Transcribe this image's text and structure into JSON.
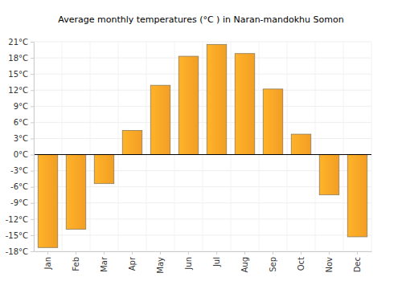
{
  "chart_data": {
    "type": "bar",
    "title": "Average monthly temperatures (°C ) in Naran-mandokhu Somon",
    "categories": [
      "Jan",
      "Feb",
      "Mar",
      "Apr",
      "May",
      "Jun",
      "Jul",
      "Aug",
      "Sep",
      "Oct",
      "Nov",
      "Dec"
    ],
    "values": [
      -17.3,
      -13.9,
      -5.4,
      4.5,
      12.9,
      18.3,
      20.5,
      18.8,
      12.2,
      3.8,
      -7.5,
      -15.3
    ],
    "color": "#ffa726",
    "ylim": [
      -18,
      21
    ],
    "yticks": [
      {
        "value": -18,
        "label": "-18°C"
      },
      {
        "value": -15,
        "label": "-15°C"
      },
      {
        "value": -12,
        "label": "-12°C"
      },
      {
        "value": -9,
        "label": "-9°C"
      },
      {
        "value": -6,
        "label": "-6°C"
      },
      {
        "value": -3,
        "label": "-3°C"
      },
      {
        "value": 0,
        "label": "0°C"
      },
      {
        "value": 3,
        "label": "3°C"
      },
      {
        "value": 6,
        "label": "6°C"
      },
      {
        "value": 9,
        "label": "9°C"
      },
      {
        "value": 12,
        "label": "12°C"
      },
      {
        "value": 15,
        "label": "15°C"
      },
      {
        "value": 18,
        "label": "18°C"
      },
      {
        "value": 21,
        "label": "21°C"
      }
    ],
    "grid": true
  }
}
